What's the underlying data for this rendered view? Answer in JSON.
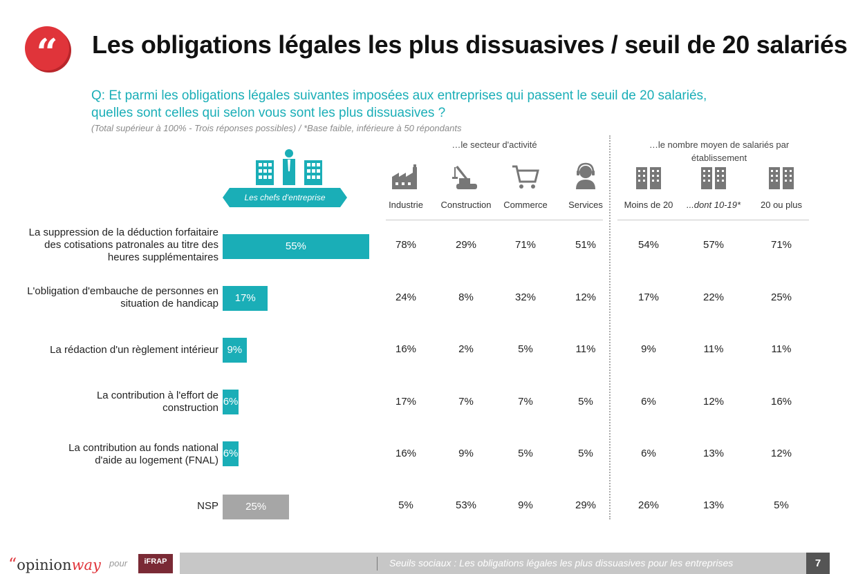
{
  "header": {
    "quote_glyph": "“",
    "title": "Les obligations légales les plus dissuasives / seuil de 20 salariés",
    "question": "Q: Et parmi les obligations légales suivantes imposées aux entreprises qui passent le seuil de 20 salariés, quelles sont celles qui selon vous sont les plus dissuasives ?",
    "note": "(Total supérieur à 100% - Trois réponses possibles) / *Base faible, inférieure à 50 répondants"
  },
  "ribbon_label": "Les chefs d'entreprise",
  "groups": {
    "sector": "…le secteur d'activité",
    "size": "…le nombre moyen de salariés par établissement"
  },
  "columns": [
    {
      "label": "Industrie",
      "icon": "factory-icon"
    },
    {
      "label": "Construction",
      "icon": "crane-icon"
    },
    {
      "label": "Commerce",
      "icon": "shopping-cart-icon"
    },
    {
      "label": "Services",
      "icon": "headset-person-icon"
    },
    {
      "label": "Moins de 20",
      "icon": "building-icon"
    },
    {
      "label": "...dont 10-19*",
      "icon": "building-icon"
    },
    {
      "label": "20 ou plus",
      "icon": "building-icon"
    }
  ],
  "chart_data": {
    "type": "bar",
    "orientation": "horizontal",
    "categories": [
      "La suppression de la déduction forfaitaire des cotisations patronales au titre des heures supplémentaires",
      "L'obligation d'embauche de personnes en situation de handicap",
      "La rédaction d'un règlement intérieur",
      "La contribution à l'effort de construction",
      "La contribution au fonds national d'aide au logement (FNAL)",
      "NSP"
    ],
    "values": [
      55,
      17,
      9,
      6,
      6,
      25
    ],
    "value_labels": [
      "55%",
      "17%",
      "9%",
      "6%",
      "6%",
      "25%"
    ],
    "bar_colors": [
      "#1aaeb7",
      "#1aaeb7",
      "#1aaeb7",
      "#1aaeb7",
      "#1aaeb7",
      "#a6a6a6"
    ],
    "series_name": "Les chefs d'entreprise",
    "xlim": [
      0,
      100
    ]
  },
  "table": {
    "rows": [
      [
        "78%",
        "29%",
        "71%",
        "51%",
        "54%",
        "57%",
        "71%"
      ],
      [
        "24%",
        "8%",
        "32%",
        "12%",
        "17%",
        "22%",
        "25%"
      ],
      [
        "16%",
        "2%",
        "5%",
        "11%",
        "9%",
        "11%",
        "11%"
      ],
      [
        "17%",
        "7%",
        "7%",
        "5%",
        "6%",
        "12%",
        "16%"
      ],
      [
        "16%",
        "9%",
        "5%",
        "5%",
        "6%",
        "13%",
        "12%"
      ],
      [
        "5%",
        "53%",
        "9%",
        "29%",
        "26%",
        "13%",
        "5%"
      ]
    ]
  },
  "footer": {
    "logo_quote": "“",
    "logo_opinion": "opinion",
    "logo_way": "way",
    "pour": "pour",
    "partner": "iFRAP",
    "caption": "Seuils sociaux : Les obligations légales les plus dissuasives pour les entreprises",
    "page": "7"
  },
  "colors": {
    "accent": "#1aaeb7",
    "brand_red": "#e0343a",
    "nsp_gray": "#a6a6a6"
  }
}
